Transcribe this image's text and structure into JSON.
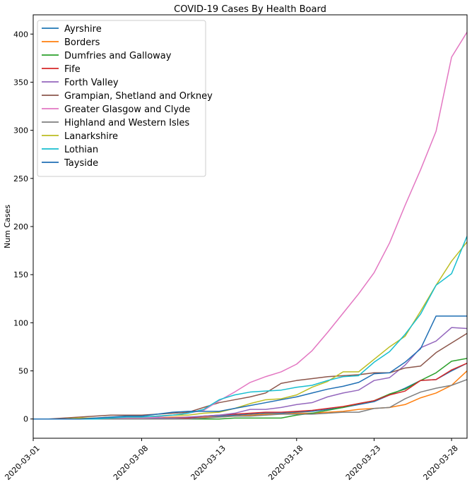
{
  "chart_data": {
    "type": "line",
    "title": "COVID-19 Cases By Health Board",
    "xlabel": "",
    "ylabel": "Num Cases",
    "xlim": [
      "2020-03-01",
      "2020-03-29"
    ],
    "ylim": [
      -20,
      420
    ],
    "xticks": [
      "2020-03-01",
      "2020-03-08",
      "2020-03-13",
      "2020-03-18",
      "2020-03-23",
      "2020-03-28"
    ],
    "yticks": [
      0,
      50,
      100,
      150,
      200,
      250,
      300,
      350,
      400
    ],
    "grid": false,
    "legend_position": "top-left",
    "x": [
      "2020-03-01",
      "2020-03-02",
      "2020-03-03",
      "2020-03-04",
      "2020-03-05",
      "2020-03-06",
      "2020-03-07",
      "2020-03-08",
      "2020-03-09",
      "2020-03-10",
      "2020-03-11",
      "2020-03-12",
      "2020-03-13",
      "2020-03-14",
      "2020-03-15",
      "2020-03-16",
      "2020-03-17",
      "2020-03-18",
      "2020-03-19",
      "2020-03-20",
      "2020-03-21",
      "2020-03-22",
      "2020-03-23",
      "2020-03-24",
      "2020-03-25",
      "2020-03-26",
      "2020-03-27",
      "2020-03-28",
      "2020-03-29"
    ],
    "series": [
      {
        "name": "Ayrshire",
        "color": "#1f77b4",
        "values": [
          0,
          0,
          0,
          0,
          0,
          1,
          1,
          1,
          1,
          1,
          1,
          2,
          3,
          4,
          5,
          6,
          6,
          7,
          8,
          10,
          12,
          15,
          18,
          25,
          32,
          40,
          41,
          50,
          58
        ]
      },
      {
        "name": "Borders",
        "color": "#ff7f0e",
        "values": [
          0,
          0,
          0,
          0,
          0,
          1,
          1,
          1,
          1,
          2,
          2,
          2,
          2,
          3,
          4,
          5,
          5,
          6,
          6,
          7,
          8,
          10,
          11,
          12,
          15,
          22,
          27,
          35,
          50
        ]
      },
      {
        "name": "Dumfries and Galloway",
        "color": "#2ca02c",
        "values": [
          0,
          0,
          0,
          0,
          0,
          0,
          0,
          0,
          0,
          0,
          0,
          0,
          0,
          1,
          1,
          1,
          1,
          4,
          6,
          9,
          12,
          16,
          19,
          26,
          31,
          40,
          48,
          60,
          63
        ]
      },
      {
        "name": "Fife",
        "color": "#d62728",
        "values": [
          0,
          0,
          0,
          0,
          0,
          0,
          1,
          1,
          1,
          1,
          1,
          3,
          4,
          5,
          6,
          7,
          7,
          8,
          9,
          11,
          13,
          16,
          19,
          25,
          29,
          40,
          41,
          51,
          58
        ]
      },
      {
        "name": "Forth Valley",
        "color": "#9467bd",
        "values": [
          0,
          0,
          0,
          0,
          0,
          0,
          1,
          1,
          1,
          1,
          2,
          3,
          4,
          6,
          10,
          10,
          12,
          15,
          17,
          23,
          27,
          30,
          40,
          43,
          56,
          74,
          81,
          95,
          94
        ]
      },
      {
        "name": "Grampian, Shetland and Orkney",
        "color": "#8c564b",
        "values": [
          0,
          0,
          1,
          2,
          3,
          4,
          4,
          4,
          5,
          6,
          7,
          12,
          17,
          20,
          23,
          27,
          37,
          40,
          42,
          44,
          45,
          46,
          48,
          48,
          53,
          55,
          69,
          79,
          89
        ]
      },
      {
        "name": "Greater Glasgow and Clyde",
        "color": "#e377c2",
        "values": [
          0,
          0,
          0,
          0,
          0,
          1,
          1,
          1,
          2,
          4,
          6,
          9,
          19,
          28,
          38,
          44,
          49,
          57,
          71,
          90,
          110,
          130,
          152,
          183,
          222,
          259,
          299,
          376,
          402
        ]
      },
      {
        "name": "Highland and Western Isles",
        "color": "#7f7f7f",
        "values": [
          0,
          0,
          0,
          0,
          0,
          0,
          0,
          0,
          0,
          0,
          0,
          1,
          2,
          3,
          3,
          4,
          5,
          5,
          5,
          6,
          7,
          7,
          11,
          12,
          21,
          28,
          32,
          35,
          41
        ]
      },
      {
        "name": "Lanarkshire",
        "color": "#bcbd22",
        "values": [
          0,
          0,
          0,
          1,
          1,
          2,
          2,
          2,
          3,
          4,
          4,
          6,
          7,
          11,
          16,
          20,
          21,
          25,
          33,
          39,
          49,
          49,
          62,
          75,
          86,
          112,
          139,
          164,
          184
        ]
      },
      {
        "name": "Lothian",
        "color": "#17becf",
        "values": [
          0,
          0,
          0,
          0,
          0,
          1,
          2,
          2,
          3,
          4,
          6,
          10,
          20,
          25,
          28,
          29,
          30,
          33,
          35,
          40,
          44,
          45,
          59,
          70,
          88,
          109,
          139,
          151,
          190
        ]
      },
      {
        "name": "Tayside",
        "color": "#1f6fb4",
        "values": [
          0,
          0,
          0,
          0,
          1,
          2,
          3,
          3,
          5,
          7,
          8,
          8,
          8,
          11,
          14,
          17,
          20,
          23,
          27,
          31,
          34,
          38,
          47,
          48,
          59,
          73,
          107,
          107,
          107
        ]
      }
    ]
  }
}
